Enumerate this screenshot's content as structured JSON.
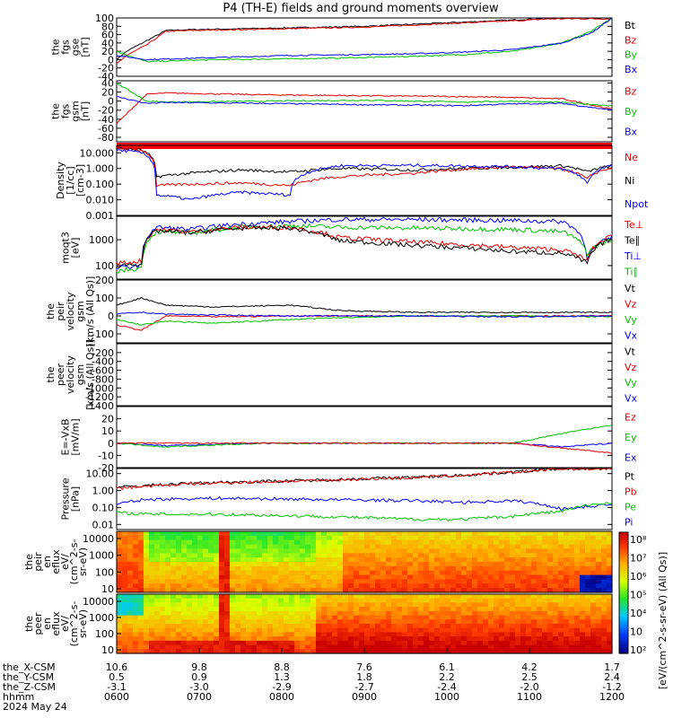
{
  "chart_data": {
    "type": "line",
    "title": "P4 (TH-E) fields and ground moments overview",
    "colors": {
      "black": "#000000",
      "red": "#e00000",
      "green": "#00c000",
      "blue": "#0000ff"
    },
    "panels": [
      {
        "id": "fgs_gse",
        "ylabel": [
          "the",
          "fgs",
          "gse",
          "[nT]"
        ],
        "ylim": [
          -40,
          100
        ],
        "scale": "linear",
        "ticks": [
          "100",
          "80",
          "60",
          "40",
          "20",
          "0",
          "-20",
          "-40"
        ],
        "legend": [
          {
            "t": "Bt",
            "c": "black"
          },
          {
            "t": "Bz",
            "c": "red"
          },
          {
            "t": "By",
            "c": "green"
          },
          {
            "t": "Bx",
            "c": "blue"
          }
        ],
        "series": [
          {
            "c": "black",
            "x": [
              0,
              0.02,
              0.06,
              0.1,
              0.15,
              0.3,
              0.5,
              0.6,
              0.7,
              0.8,
              0.88
            ],
            "y": [
              0,
              20,
              45,
              70,
              72,
              75,
              80,
              85,
              90,
              95,
              100
            ]
          },
          {
            "c": "red",
            "x": [
              0,
              0.02,
              0.06,
              0.1,
              0.15,
              0.3,
              0.5,
              0.6,
              0.7,
              0.8,
              0.88
            ],
            "y": [
              -10,
              10,
              35,
              68,
              70,
              73,
              78,
              83,
              88,
              93,
              98
            ]
          },
          {
            "c": "green",
            "x": [
              0,
              0.06,
              0.2,
              0.35,
              0.5,
              0.6,
              0.7,
              0.8,
              0.9,
              0.96,
              1
            ],
            "y": [
              20,
              -5,
              0,
              2,
              5,
              8,
              12,
              20,
              40,
              70,
              100
            ]
          },
          {
            "c": "blue",
            "x": [
              0,
              0.06,
              0.2,
              0.35,
              0.5,
              0.6,
              0.7,
              0.8,
              0.9,
              0.96,
              1
            ],
            "y": [
              10,
              0,
              5,
              10,
              12,
              14,
              18,
              24,
              40,
              65,
              100
            ]
          }
        ]
      },
      {
        "id": "fgs_gsm",
        "ylabel": [
          "the",
          "fgs",
          "gsm",
          "[nT]"
        ],
        "ylim": [
          -90,
          45
        ],
        "scale": "linear",
        "ticks": [
          "40",
          "20",
          "0",
          "-20",
          "-40",
          "-60",
          "-80"
        ],
        "legend": [
          {
            "t": "Bz",
            "c": "red"
          },
          {
            "t": "By",
            "c": "green"
          },
          {
            "t": "Bx",
            "c": "blue"
          }
        ],
        "series": [
          {
            "c": "red",
            "x": [
              0,
              0.06,
              0.1,
              0.3,
              0.5,
              0.7,
              0.8,
              0.9,
              1
            ],
            "y": [
              -50,
              15,
              18,
              14,
              12,
              10,
              8,
              5,
              -18
            ]
          },
          {
            "c": "green",
            "x": [
              0,
              0.06,
              0.1,
              0.3,
              0.5,
              0.7,
              0.8,
              0.9,
              1
            ],
            "y": [
              40,
              0,
              -2,
              0,
              2,
              -2,
              0,
              -3,
              -10
            ]
          },
          {
            "c": "blue",
            "x": [
              0,
              0.06,
              0.1,
              0.3,
              0.5,
              0.7,
              0.8,
              0.9,
              1
            ],
            "y": [
              10,
              -5,
              -3,
              -5,
              -8,
              -10,
              -6,
              -5,
              -20
            ]
          }
        ]
      },
      {
        "id": "density",
        "ylabel": [
          "Density",
          "[1/cc]",
          "[cm-3]"
        ],
        "ylim": [
          0.001,
          30
        ],
        "scale": "log",
        "ticks": [
          "10.000",
          "1.000",
          "0.100",
          "0.010",
          "0.001"
        ],
        "legend": [
          {
            "t": "Ne",
            "c": "red"
          },
          {
            "t": "Ni",
            "c": "black"
          },
          {
            "t": "Npot",
            "c": "blue"
          }
        ],
        "series": [
          {
            "c": "black",
            "x": [
              0,
              0.05,
              0.08,
              0.15,
              0.25,
              0.35,
              0.45,
              0.6,
              0.8,
              0.9,
              0.95,
              1
            ],
            "y": [
              20,
              15,
              0.3,
              0.5,
              0.8,
              0.6,
              1,
              0.8,
              1.2,
              1.5,
              0.6,
              1.5
            ]
          },
          {
            "c": "red",
            "x": [
              0,
              0.05,
              0.08,
              0.15,
              0.25,
              0.35,
              0.45,
              0.6,
              0.8,
              0.9,
              0.95,
              1
            ],
            "y": [
              20,
              15,
              0.08,
              0.1,
              0.12,
              0.08,
              0.3,
              0.5,
              1.3,
              0.9,
              0.2,
              1.1
            ]
          },
          {
            "c": "blue",
            "x": [
              0,
              0.05,
              0.08,
              0.15,
              0.25,
              0.35,
              0.45,
              0.6,
              0.8,
              0.9,
              0.95,
              1
            ],
            "y": [
              15,
              10,
              0.02,
              0.01,
              0.03,
              0.02,
              1.5,
              1.6,
              1.3,
              0.9,
              0.1,
              1.6
            ]
          }
        ]
      },
      {
        "id": "temp",
        "ylabel": [
          "moqt3",
          "[eV]"
        ],
        "ylim": [
          30,
          8000
        ],
        "scale": "log",
        "ticks": [
          "1000",
          "100"
        ],
        "legend": [
          {
            "t": "Te⊥",
            "c": "red"
          },
          {
            "t": "Te∥",
            "c": "black"
          },
          {
            "t": "Ti⊥",
            "c": "blue"
          },
          {
            "t": "Ti∥",
            "c": "green"
          }
        ],
        "series": [
          {
            "c": "blue",
            "x": [
              0,
              0.05,
              0.08,
              0.15,
              0.25,
              0.35,
              0.45,
              0.6,
              0.8,
              0.9,
              0.95,
              1
            ],
            "y": [
              80,
              100,
              3000,
              2500,
              4000,
              5000,
              6000,
              6000,
              5500,
              5000,
              200,
              1200
            ]
          },
          {
            "c": "green",
            "x": [
              0,
              0.05,
              0.08,
              0.15,
              0.25,
              0.35,
              0.45,
              0.6,
              0.8,
              0.9,
              0.95,
              1
            ],
            "y": [
              60,
              80,
              2000,
              1800,
              3000,
              3500,
              3000,
              2800,
              2500,
              2000,
              300,
              1000
            ]
          },
          {
            "c": "red",
            "x": [
              0,
              0.05,
              0.08,
              0.15,
              0.25,
              0.35,
              0.45,
              0.6,
              0.8,
              0.9,
              0.95,
              1
            ],
            "y": [
              120,
              150,
              2500,
              2000,
              3000,
              3000,
              1200,
              800,
              500,
              400,
              150,
              1400
            ]
          },
          {
            "c": "black",
            "x": [
              0,
              0.05,
              0.08,
              0.15,
              0.25,
              0.35,
              0.45,
              0.6,
              0.8,
              0.9,
              0.95,
              1
            ],
            "y": [
              100,
              120,
              2200,
              1800,
              2800,
              2800,
              900,
              600,
              350,
              300,
              120,
              1100
            ]
          }
        ]
      },
      {
        "id": "peir_vel",
        "ylabel": [
          "the",
          "peir",
          "velocity",
          "gsm",
          "[km/s (All Qs)]"
        ],
        "ylim": [
          -150,
          200
        ],
        "scale": "linear",
        "ticks": [
          "200",
          "100",
          "0",
          "-100"
        ],
        "legend": [
          {
            "t": "Vt",
            "c": "black"
          },
          {
            "t": "Vz",
            "c": "red"
          },
          {
            "t": "Vy",
            "c": "green"
          },
          {
            "t": "Vx",
            "c": "blue"
          }
        ],
        "series": [
          {
            "c": "black",
            "x": [
              0,
              0.05,
              0.1,
              0.2,
              0.35,
              0.45,
              0.6,
              0.8,
              1
            ],
            "y": [
              60,
              100,
              60,
              50,
              60,
              30,
              20,
              20,
              20
            ]
          },
          {
            "c": "red",
            "x": [
              0,
              0.05,
              0.1,
              0.2,
              0.35,
              0.45,
              0.6,
              0.8,
              1
            ],
            "y": [
              -50,
              -80,
              0,
              -5,
              0,
              0,
              0,
              0,
              0
            ]
          },
          {
            "c": "green",
            "x": [
              0,
              0.05,
              0.1,
              0.2,
              0.35,
              0.45,
              0.6,
              0.8,
              1
            ],
            "y": [
              -20,
              -50,
              -30,
              -40,
              -20,
              -10,
              0,
              0,
              -5
            ]
          },
          {
            "c": "blue",
            "x": [
              0,
              0.05,
              0.1,
              0.2,
              0.35,
              0.45,
              0.6,
              0.8,
              1
            ],
            "y": [
              10,
              20,
              10,
              5,
              0,
              0,
              0,
              -5,
              0
            ]
          }
        ]
      },
      {
        "id": "peer_vel",
        "ylabel": [
          "the",
          "peer",
          "velocity",
          "gsm",
          "[km/s (All Qs)]"
        ],
        "ylim": [
          -1400,
          0
        ],
        "scale": "linear",
        "ticks": [
          "-200",
          "-400",
          "-600",
          "-800",
          "-1000",
          "-1200",
          "-1400"
        ],
        "legend": [
          {
            "t": "Vt",
            "c": "black"
          },
          {
            "t": "Vz",
            "c": "red"
          },
          {
            "t": "Vy",
            "c": "green"
          },
          {
            "t": "Vx",
            "c": "blue"
          }
        ],
        "series": []
      },
      {
        "id": "efield",
        "ylabel": [
          "E=-VxB",
          "[mV/m]"
        ],
        "ylim": [
          -20,
          30
        ],
        "scale": "linear",
        "ticks": [
          "20",
          "10",
          "0",
          "-10",
          "-20"
        ],
        "legend": [
          {
            "t": "Ez",
            "c": "red"
          },
          {
            "t": "Ey",
            "c": "green"
          },
          {
            "t": "Ex",
            "c": "blue"
          }
        ],
        "series": [
          {
            "c": "blue",
            "x": [
              0,
              0.1,
              0.3,
              0.5,
              0.7,
              0.8,
              0.9,
              1
            ],
            "y": [
              0,
              -2,
              0,
              0,
              0,
              0,
              -3,
              0
            ]
          },
          {
            "c": "green",
            "x": [
              0,
              0.1,
              0.3,
              0.5,
              0.7,
              0.8,
              0.9,
              1
            ],
            "y": [
              0,
              -3,
              0,
              0,
              0,
              0,
              8,
              15
            ]
          },
          {
            "c": "red",
            "x": [
              0,
              0.1,
              0.3,
              0.5,
              0.7,
              0.8,
              0.9,
              1
            ],
            "y": [
              0,
              0,
              0,
              0,
              0,
              0,
              -4,
              -8
            ]
          }
        ]
      },
      {
        "id": "pressure",
        "ylabel": [
          "Pressure",
          "[nPa]"
        ],
        "ylim": [
          0.005,
          20
        ],
        "scale": "log",
        "ticks": [
          "10.00",
          "1.00",
          "0.10",
          "0.01"
        ],
        "legend": [
          {
            "t": "Pt",
            "c": "black"
          },
          {
            "t": "Pb",
            "c": "red"
          },
          {
            "t": "Pe",
            "c": "green"
          },
          {
            "t": "Pi",
            "c": "blue"
          }
        ],
        "series": [
          {
            "c": "black",
            "x": [
              0,
              0.06,
              0.2,
              0.4,
              0.6,
              0.7,
              0.8,
              0.9
            ],
            "y": [
              1.5,
              2,
              3,
              4,
              6,
              8,
              12,
              20
            ]
          },
          {
            "c": "red",
            "x": [
              0,
              0.06,
              0.2,
              0.4,
              0.6,
              0.7,
              0.8,
              0.9
            ],
            "y": [
              1.3,
              1.8,
              2.8,
              3.8,
              5.8,
              7.8,
              11.8,
              19
            ]
          },
          {
            "c": "blue",
            "x": [
              0,
              0.06,
              0.2,
              0.4,
              0.6,
              0.7,
              0.8,
              0.9,
              1
            ],
            "y": [
              0.15,
              0.3,
              0.35,
              0.3,
              0.25,
              0.2,
              0.25,
              0.08,
              0.15
            ]
          },
          {
            "c": "green",
            "x": [
              0,
              0.06,
              0.2,
              0.4,
              0.6,
              0.7,
              0.8,
              0.9,
              1
            ],
            "y": [
              0.05,
              0.04,
              0.04,
              0.03,
              0.02,
              0.02,
              0.03,
              0.06,
              0.2
            ]
          }
        ]
      }
    ],
    "spectrograms": [
      {
        "id": "peir_en",
        "ylabel": [
          "the",
          "peir",
          "en",
          "eflux",
          "eV/",
          "(cm^2-s-",
          "sr-eV)"
        ],
        "ticks": [
          "10000",
          "1000",
          "100",
          "10"
        ]
      },
      {
        "id": "peer_en",
        "ylabel": [
          "the",
          "peer",
          "en",
          "eflux",
          "eV/",
          "(cm^2-s-",
          "sr-eV)"
        ],
        "ticks": [
          "10000",
          "1000",
          "100",
          "10"
        ]
      }
    ],
    "colorbar": {
      "ticks": [
        "10⁸",
        "10⁷",
        "10⁶",
        "10⁵",
        "10⁴",
        "10⁳",
        "10²"
      ],
      "label": "[eV/(cm^2-s-sr-eV) (All Qs)]"
    },
    "xaxis": {
      "rows": [
        {
          "label": "the_X-CSM",
          "values": [
            "10.6",
            "9.8",
            "8.8",
            "7.6",
            "6.1",
            "4.2",
            "1.7"
          ]
        },
        {
          "label": "the_Y-CSM",
          "values": [
            "0.5",
            "0.9",
            "1.3",
            "1.8",
            "2.2",
            "2.5",
            "2.4"
          ]
        },
        {
          "label": "the_Z-CSM",
          "values": [
            "-3.1",
            "-3.0",
            "-2.9",
            "-2.7",
            "-2.4",
            "-2.0",
            "-1.2"
          ]
        },
        {
          "label": "hhmm",
          "values": [
            "0600",
            "0700",
            "0800",
            "0900",
            "1000",
            "1100",
            "1200"
          ]
        }
      ],
      "date": "2024 May 24"
    }
  }
}
